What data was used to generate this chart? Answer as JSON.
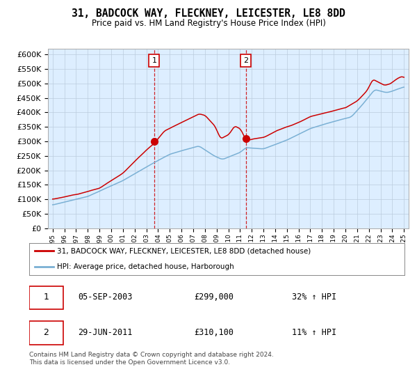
{
  "title": "31, BADCOCK WAY, FLECKNEY, LEICESTER, LE8 8DD",
  "subtitle": "Price paid vs. HM Land Registry's House Price Index (HPI)",
  "ylim": [
    0,
    620000
  ],
  "yticks": [
    0,
    50000,
    100000,
    150000,
    200000,
    250000,
    300000,
    350000,
    400000,
    450000,
    500000,
    550000,
    600000
  ],
  "xlim_start": 1994.6,
  "xlim_end": 2025.4,
  "sale1_x": 2003.67,
  "sale1_y": 299000,
  "sale1_date": "05-SEP-2003",
  "sale1_price": "£299,000",
  "sale1_pct": "32% ↑ HPI",
  "sale2_x": 2011.5,
  "sale2_y": 310100,
  "sale2_date": "29-JUN-2011",
  "sale2_price": "£310,100",
  "sale2_pct": "11% ↑ HPI",
  "legend_line1": "31, BADCOCK WAY, FLECKNEY, LEICESTER, LE8 8DD (detached house)",
  "legend_line2": "HPI: Average price, detached house, Harborough",
  "footer": "Contains HM Land Registry data © Crown copyright and database right 2024.\nThis data is licensed under the Open Government Licence v3.0.",
  "red_color": "#cc0000",
  "blue_color": "#7ab0d4",
  "background_color": "#ddeeff",
  "grid_color": "#bbccdd"
}
